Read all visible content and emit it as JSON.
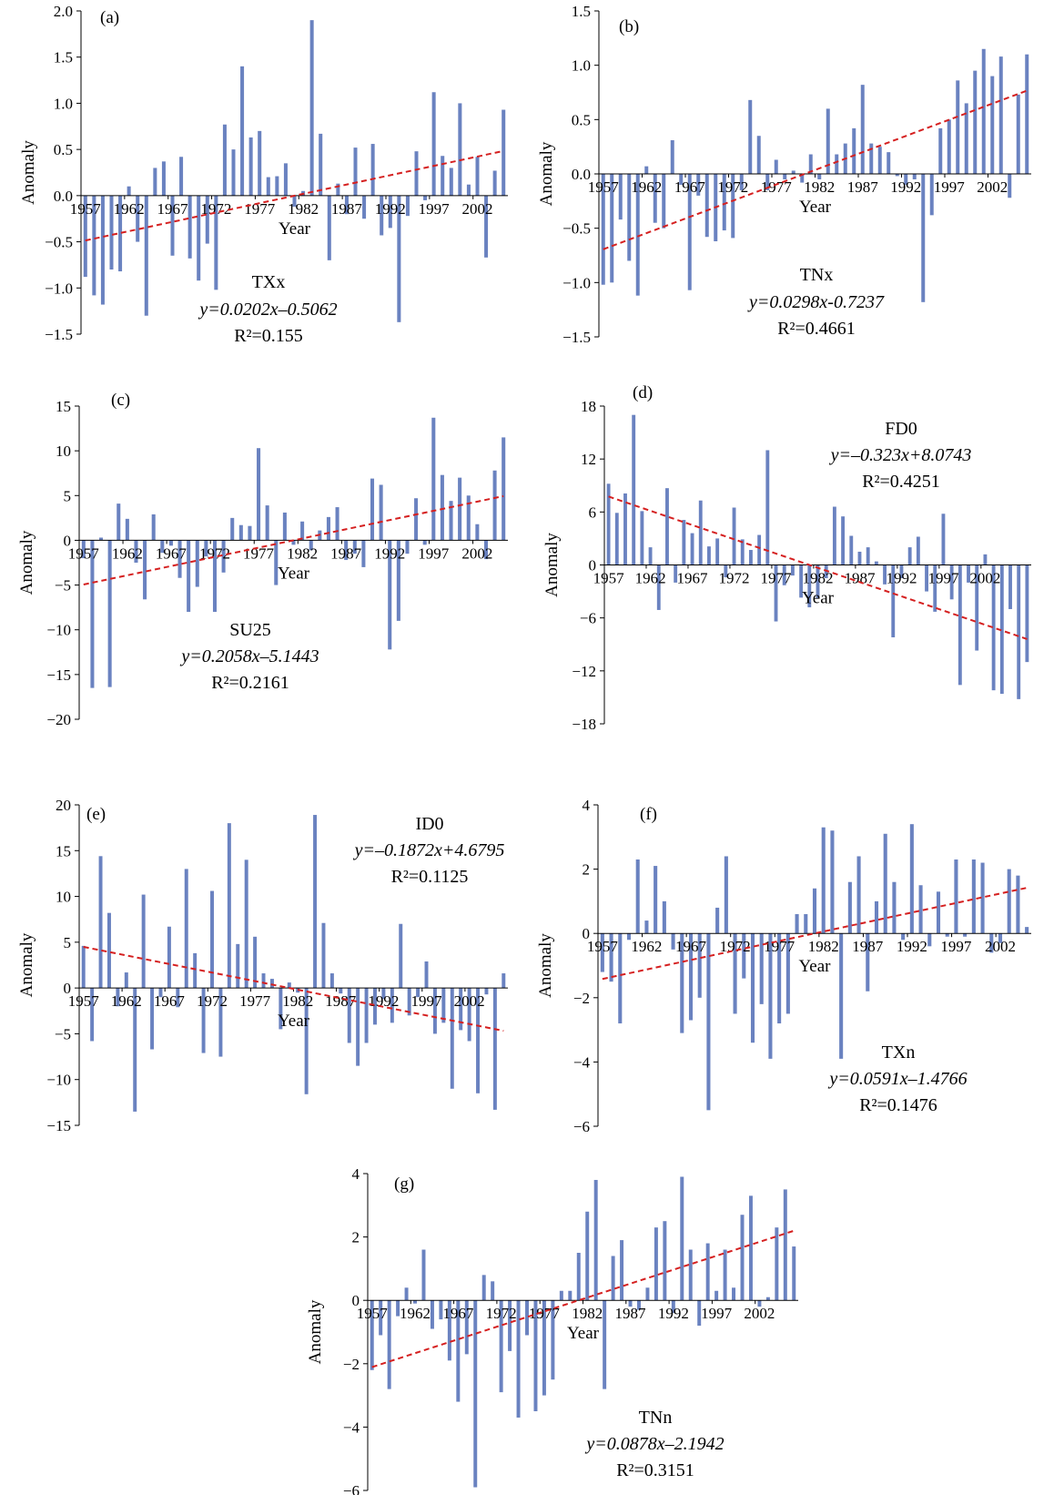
{
  "chart_data": [
    {
      "type": "bar",
      "panel_label": "(a)",
      "x_tick_labels": [
        "1957",
        "1962",
        "1967",
        "1972",
        "1977",
        "1982",
        "1987",
        "1992",
        "1997",
        "2002"
      ],
      "x_start_year": 1957,
      "xlabel": "Year",
      "ylabel": "Anomaly",
      "ylim": [
        -1.5,
        2.0
      ],
      "yticks": [
        -1.5,
        -1.0,
        -0.5,
        0.0,
        0.5,
        1.0,
        1.5,
        2.0
      ],
      "ytick_labels": [
        "−1.5",
        "−1.0",
        "−0.5",
        "0.0",
        "0.5",
        "1.0",
        "1.5",
        "2.0"
      ],
      "trend": {
        "slope": 0.0202,
        "intercept": -0.5062,
        "x_start": 1
      },
      "annotation": {
        "name": "TXx",
        "equation": "y=0.0202x–0.5062",
        "r2": "R²=0.155"
      },
      "series": [
        {
          "values": [
            -0.88,
            -1.08,
            -1.18,
            -0.8,
            -0.82,
            0.1,
            -0.5,
            -1.3,
            0.3,
            0.37,
            -0.65,
            0.42,
            -0.68,
            -0.92,
            -0.52,
            -1.02,
            0.77,
            0.5,
            1.4,
            0.63,
            0.7,
            0.2,
            0.21,
            0.35,
            -0.12,
            0.05,
            1.9,
            0.67,
            -0.7,
            0.13,
            -0.2,
            0.52,
            -0.25,
            0.56,
            -0.43,
            -0.35,
            -1.37,
            -0.22,
            0.48,
            -0.05,
            1.12,
            0.43,
            0.3,
            1.0,
            0.12,
            0.42,
            -0.67,
            0.27,
            0.93
          ]
        }
      ]
    },
    {
      "type": "bar",
      "panel_label": "(b)",
      "x_tick_labels": [
        "1957",
        "1962",
        "1967",
        "1972",
        "1977",
        "1982",
        "1987",
        "1992",
        "1997",
        "2002"
      ],
      "x_start_year": 1957,
      "xlabel": "Year",
      "ylabel": "Anomaly",
      "ylim": [
        -1.5,
        1.5
      ],
      "yticks": [
        -1.5,
        -1.0,
        -0.5,
        0.0,
        0.5,
        1.0,
        1.5
      ],
      "ytick_labels": [
        "−1.5",
        "−1.0",
        "−0.5",
        "0.0",
        "0.5",
        "1.0",
        "1.5"
      ],
      "trend": {
        "slope": 0.0298,
        "intercept": -0.7237,
        "x_start": 1
      },
      "annotation": {
        "name": "TNx",
        "equation": "y=0.0298x-0.7237",
        "r2": "R²=0.4661"
      },
      "series": [
        {
          "values": [
            -1.02,
            -1.0,
            -0.42,
            -0.8,
            -1.12,
            0.07,
            -0.45,
            -0.5,
            0.31,
            -0.1,
            -1.07,
            -0.2,
            -0.58,
            -0.62,
            -0.52,
            -0.59,
            -0.15,
            0.68,
            0.35,
            -0.15,
            0.13,
            -0.05,
            0.03,
            -0.08,
            0.18,
            -0.05,
            0.6,
            0.18,
            0.28,
            0.42,
            0.82,
            0.28,
            0.25,
            0.2,
            -0.02,
            -0.1,
            -0.05,
            -1.18,
            -0.38,
            0.42,
            0.5,
            0.86,
            0.65,
            0.95,
            1.15,
            0.9,
            1.08,
            -0.22,
            0.73,
            1.1
          ]
        }
      ]
    },
    {
      "type": "bar",
      "panel_label": "(c)",
      "x_tick_labels": [
        "1957",
        "1962",
        "1967",
        "1972",
        "1977",
        "1982",
        "1987",
        "1992",
        "1997",
        "2002"
      ],
      "x_start_year": 1957,
      "xlabel": "Year",
      "ylabel": "Anomaly",
      "ylim": [
        -20,
        15
      ],
      "yticks": [
        -20,
        -15,
        -10,
        -5,
        0,
        5,
        10,
        15
      ],
      "ytick_labels": [
        "−20",
        "−15",
        "−10",
        "−5",
        "0",
        "5",
        "10",
        "15"
      ],
      "trend": {
        "slope": 0.2058,
        "intercept": -5.1443,
        "x_start": 1
      },
      "annotation": {
        "name": "SU25",
        "equation": "y=0.2058x–5.1443",
        "r2": "R²=0.2161"
      },
      "series": [
        {
          "values": [
            -2.0,
            -16.5,
            0.3,
            -16.4,
            4.1,
            2.4,
            -2.5,
            -6.6,
            2.9,
            -1.4,
            -0.6,
            -4.2,
            -8.0,
            -5.2,
            -1.8,
            -8.0,
            -3.6,
            2.5,
            1.7,
            1.6,
            10.3,
            3.9,
            -5.0,
            3.1,
            -0.5,
            2.1,
            -1.1,
            1.1,
            2.6,
            3.7,
            -2.2,
            -1.5,
            -3.0,
            6.9,
            6.2,
            -12.2,
            -9.0,
            -1.5,
            4.7,
            -0.5,
            13.7,
            7.3,
            4.4,
            7.0,
            5.0,
            1.8,
            -2.1,
            7.8,
            11.5
          ]
        }
      ]
    },
    {
      "type": "bar",
      "panel_label": "(d)",
      "x_tick_labels": [
        "1957",
        "1962",
        "1967",
        "1972",
        "1977",
        "1982",
        "1987",
        "1992",
        "1997",
        "2002"
      ],
      "x_start_year": 1957,
      "xlabel": "Year",
      "ylabel": "Anomaly",
      "ylim": [
        -18,
        18
      ],
      "yticks": [
        -18,
        -12,
        -6,
        0,
        6,
        12,
        18
      ],
      "ytick_labels": [
        "−18",
        "−12",
        "−6",
        "0",
        "6",
        "12",
        "18"
      ],
      "trend": {
        "slope": -0.323,
        "intercept": 8.0743,
        "x_start": 1
      },
      "annotation": {
        "name": "FD0",
        "equation": "y=–0.323x+8.0743",
        "r2": "R²=0.4251"
      },
      "series": [
        {
          "values": [
            9.2,
            5.9,
            8.1,
            17.0,
            6.1,
            2.0,
            -5.1,
            8.7,
            -2.0,
            5.1,
            3.6,
            7.3,
            2.1,
            3.0,
            -1.4,
            6.5,
            2.9,
            1.7,
            3.4,
            13.0,
            -6.4,
            -2.3,
            -1.2,
            -3.7,
            -4.8,
            -3.8,
            -1.5,
            6.6,
            5.5,
            3.3,
            1.5,
            2.0,
            0.4,
            -2.2,
            -8.2,
            -1.5,
            2.0,
            3.2,
            -3.0,
            -5.3,
            5.8,
            -3.9,
            -13.6,
            -2.0,
            -9.7,
            1.2,
            -14.2,
            -14.6,
            -5.0,
            -15.2,
            -11.0
          ]
        }
      ]
    },
    {
      "type": "bar",
      "panel_label": "(e)",
      "x_tick_labels": [
        "1957",
        "1962",
        "1967",
        "1972",
        "1977",
        "1982",
        "1987",
        "1992",
        "1997",
        "2002"
      ],
      "x_start_year": 1957,
      "xlabel": "Year",
      "ylabel": "Anomaly",
      "ylim": [
        -15,
        20
      ],
      "yticks": [
        -15,
        -10,
        -5,
        0,
        5,
        10,
        15,
        20
      ],
      "ytick_labels": [
        "−15",
        "−10",
        "−5",
        "0",
        "5",
        "10",
        "15",
        "20"
      ],
      "trend": {
        "slope": -0.1872,
        "intercept": 4.6795,
        "x_start": 1
      },
      "annotation": {
        "name": "ID0",
        "equation": "y=–0.1872x+4.6795",
        "r2": "R²=0.1125"
      },
      "series": [
        {
          "values": [
            4.6,
            -5.8,
            14.4,
            8.2,
            -2.0,
            1.7,
            -13.5,
            10.2,
            -6.7,
            -1.0,
            6.7,
            -2.1,
            13.0,
            3.8,
            -7.1,
            10.6,
            -7.5,
            18.0,
            4.8,
            14.0,
            5.6,
            1.6,
            1.0,
            -4.5,
            0.6,
            -0.5,
            -11.6,
            18.9,
            7.1,
            1.6,
            -0.6,
            -6.0,
            -8.5,
            -6.0,
            -4.0,
            -1.2,
            -3.8,
            7.0,
            -3.0,
            -1.0,
            2.9,
            -5.0,
            -3.8,
            -11.0,
            -4.6,
            -5.8,
            -11.5,
            -0.7,
            -13.3,
            1.6
          ]
        }
      ]
    },
    {
      "type": "bar",
      "panel_label": "(f)",
      "x_tick_labels": [
        "1957",
        "1962",
        "1967",
        "1972",
        "1977",
        "1982",
        "1987",
        "1992",
        "1997",
        "2002"
      ],
      "x_start_year": 1957,
      "xlabel": "Year",
      "ylabel": "Anomaly",
      "ylim": [
        -6,
        4
      ],
      "yticks": [
        -6,
        -4,
        -2,
        0,
        2,
        4
      ],
      "ytick_labels": [
        "−6",
        "−4",
        "−2",
        "0",
        "2",
        "4"
      ],
      "trend": {
        "slope": 0.0591,
        "intercept": -1.4766,
        "x_start": 1
      },
      "annotation": {
        "name": "TXn",
        "equation": "y=0.0591x–1.4766",
        "r2": "R²=0.1476"
      },
      "series": [
        {
          "values": [
            -1.2,
            -1.5,
            -2.8,
            -0.2,
            2.3,
            0.4,
            2.1,
            1.0,
            -0.5,
            -3.1,
            -2.7,
            -2.0,
            -5.5,
            0.8,
            2.4,
            -2.5,
            -1.4,
            -3.4,
            -2.2,
            -3.9,
            -2.8,
            -2.5,
            0.6,
            0.6,
            1.4,
            3.3,
            3.2,
            -3.9,
            1.6,
            2.4,
            -1.8,
            1.0,
            3.1,
            1.6,
            -0.2,
            3.4,
            1.5,
            -0.4,
            1.3,
            -0.1,
            2.3,
            -0.1,
            2.3,
            2.2,
            -0.6,
            -0.3,
            2.0,
            1.8,
            0.2
          ]
        }
      ]
    },
    {
      "type": "bar",
      "panel_label": "(g)",
      "x_tick_labels": [
        "1957",
        "1962",
        "1967",
        "1972",
        "1977",
        "1982",
        "1987",
        "1992",
        "1997",
        "2002"
      ],
      "x_start_year": 1957,
      "xlabel": "Year",
      "ylabel": "Anomaly",
      "ylim": [
        -6,
        4
      ],
      "yticks": [
        -6,
        -4,
        -2,
        0,
        2,
        4
      ],
      "ytick_labels": [
        "−6",
        "−4",
        "−2",
        "0",
        "2",
        "4"
      ],
      "trend": {
        "slope": 0.0878,
        "intercept": -2.1942,
        "x_start": 1
      },
      "annotation": {
        "name": "TNn",
        "equation": "y=0.0878x–2.1942",
        "r2": "R²=0.3151"
      },
      "series": [
        {
          "values": [
            -2.2,
            -1.1,
            -2.8,
            -0.5,
            0.4,
            -0.1,
            1.6,
            -0.9,
            -0.6,
            -1.9,
            -3.2,
            -1.7,
            -5.9,
            0.8,
            0.6,
            -2.9,
            -1.6,
            -3.7,
            -1.1,
            -3.5,
            -3.0,
            -2.5,
            0.3,
            0.3,
            1.5,
            2.8,
            3.8,
            -2.8,
            1.4,
            1.9,
            -0.2,
            -0.3,
            0.4,
            2.3,
            2.5,
            -0.4,
            3.9,
            1.6,
            -0.8,
            1.8,
            0.3,
            1.6,
            0.4,
            2.7,
            3.3,
            -0.2,
            0.1,
            2.3,
            3.5,
            1.7
          ]
        }
      ]
    }
  ]
}
